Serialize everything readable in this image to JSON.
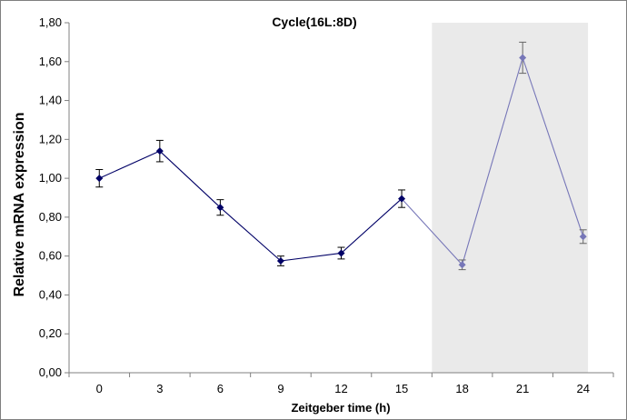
{
  "chart_data": {
    "type": "line",
    "title": "Cycle(16L:8D)",
    "xlabel": "Zeitgeber time (h)",
    "ylabel": "Relative mRNA expression",
    "categories": [
      "0",
      "3",
      "6",
      "9",
      "12",
      "15",
      "18",
      "21",
      "24"
    ],
    "ylim": [
      0,
      1.8
    ],
    "yticks": [
      "0,00",
      "0,20",
      "0,40",
      "0,60",
      "0,80",
      "1,00",
      "1,20",
      "1,40",
      "1,60",
      "1,80"
    ],
    "grid": false,
    "legend": "none",
    "dark_shading": {
      "from_category": "15",
      "to_category": "24"
    },
    "series": [
      {
        "values": [
          1.0,
          1.14,
          0.85,
          0.575,
          0.615,
          0.895,
          0.555,
          1.62,
          0.7
        ],
        "errors": [
          0.045,
          0.055,
          0.04,
          0.025,
          0.03,
          0.045,
          0.025,
          0.08,
          0.035
        ]
      }
    ],
    "colors": {
      "light_phase": "#000066",
      "dark_phase": "#7777b8",
      "shading": "#eaeaea",
      "error_bar": "#000000",
      "error_bar_dark": "#666666"
    }
  }
}
